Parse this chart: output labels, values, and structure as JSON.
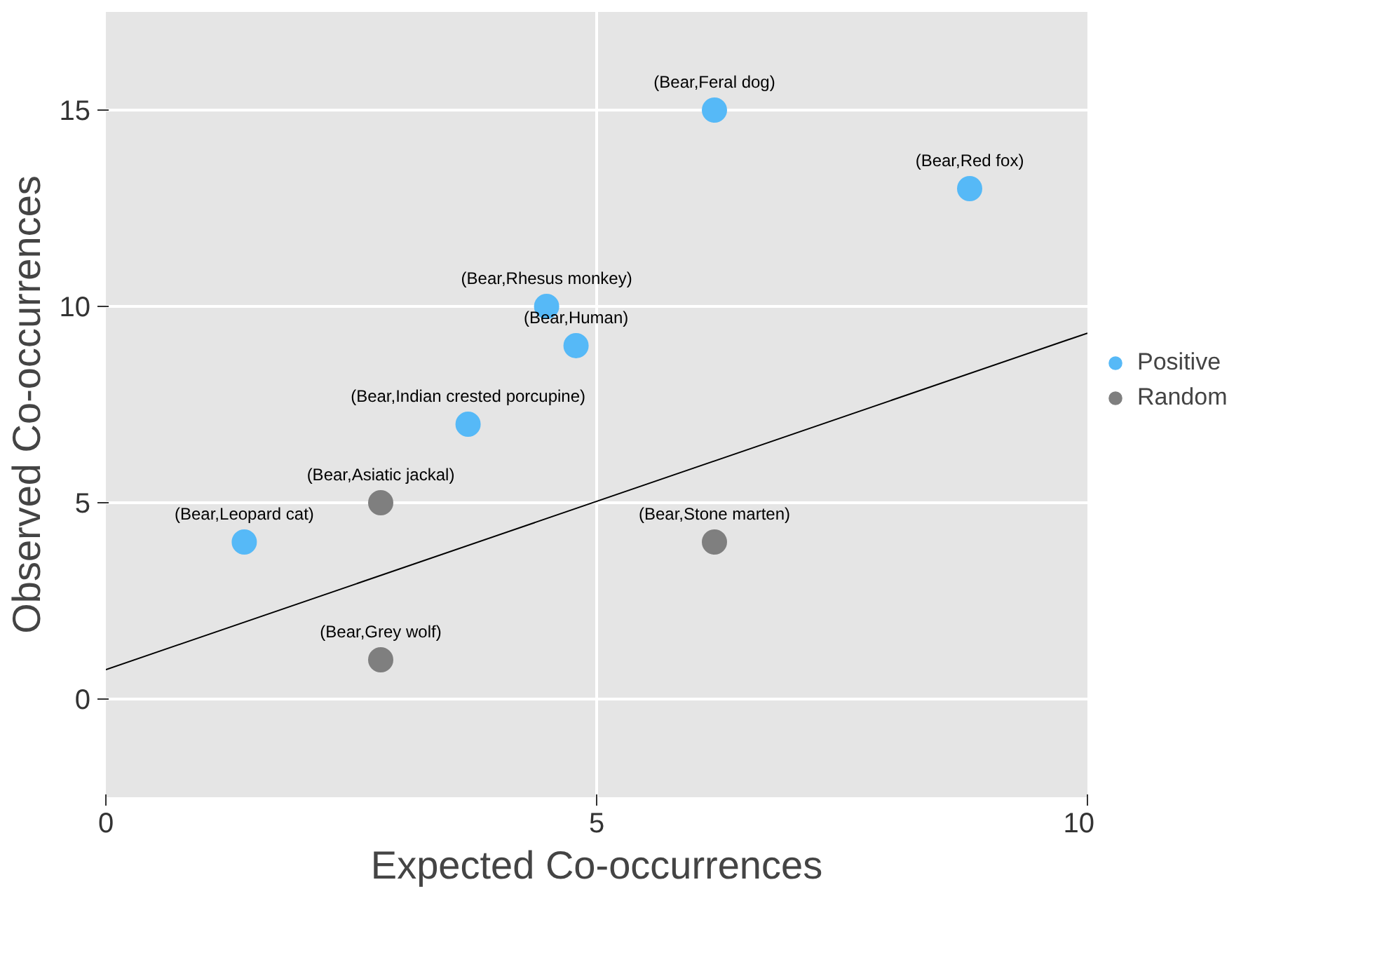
{
  "chart_data": {
    "type": "scatter",
    "xlabel": "Expected Co-occurrences",
    "ylabel": "Observed Co-occurrences",
    "xlim": [
      0,
      10
    ],
    "ylim": [
      -2.5,
      17.5
    ],
    "xticks": [
      0,
      5,
      10
    ],
    "yticks": [
      0,
      5,
      10,
      15
    ],
    "grid": true,
    "legend": "right",
    "series": [
      {
        "name": "Positive",
        "marker": "circle",
        "color": "#56b9f7",
        "x": [
          1.41,
          3.69,
          4.49,
          4.79,
          6.2,
          8.8
        ],
        "values": [
          4,
          7,
          10,
          9,
          15,
          13
        ]
      },
      {
        "name": "Random",
        "marker": "circle",
        "color": "#7f7f7f",
        "x": [
          2.8,
          2.8,
          6.2
        ],
        "values": [
          5,
          1,
          4
        ]
      },
      {
        "type": "line",
        "color": "#000000",
        "x": [
          0,
          10
        ],
        "values": [
          0.75,
          9.32
        ]
      }
    ],
    "annotations": [
      {
        "text": "(Bear,Leopard cat)",
        "x": 1.41,
        "y": 4
      },
      {
        "text": "(Bear,Indian crested porcupine)",
        "x": 3.69,
        "y": 7
      },
      {
        "text": "(Bear,Rhesus monkey)",
        "x": 4.49,
        "y": 10
      },
      {
        "text": "(Bear,Human)",
        "x": 4.79,
        "y": 9
      },
      {
        "text": "(Bear,Feral dog)",
        "x": 6.2,
        "y": 15
      },
      {
        "text": "(Bear,Red fox)",
        "x": 8.8,
        "y": 13
      },
      {
        "text": "(Bear,Asiatic jackal)",
        "x": 2.8,
        "y": 5
      },
      {
        "text": "(Bear,Grey wolf)",
        "x": 2.8,
        "y": 1
      },
      {
        "text": "(Bear,Stone marten)",
        "x": 6.2,
        "y": 4
      }
    ]
  }
}
